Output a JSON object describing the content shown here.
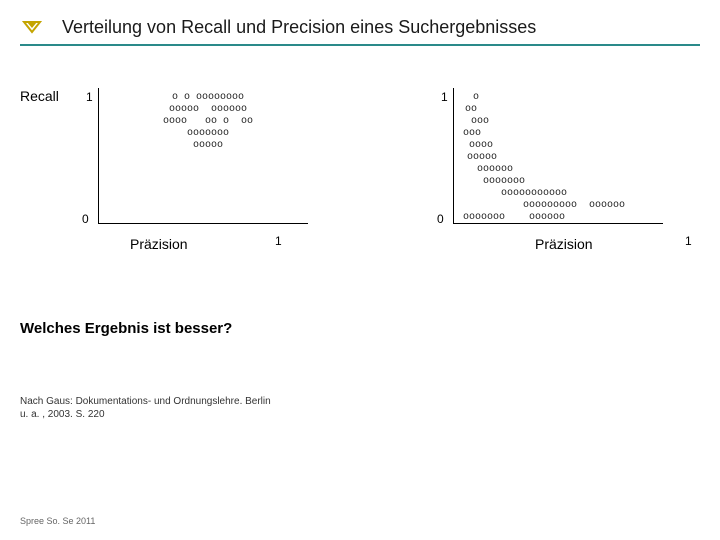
{
  "header": {
    "title": "Verteilung von Recall und Precision eines Suchergebnisses",
    "icon_color": "#c4a400"
  },
  "chart_left": {
    "y_label": "Recall",
    "x_label": "Präzision",
    "y_tick_top": "1",
    "y_tick_bottom": "0",
    "x_tick_right": "1",
    "axis_color": "#000000",
    "background": "#ffffff",
    "point_glyph": "o",
    "point_color": "#222222",
    "point_fontsize": 10,
    "cloud_alignment": "centered-high",
    "rows": [
      "o o oooooooo",
      "ooooo  oooooo",
      "oooo   oo o  oo",
      "ooooooo",
      "ooooo"
    ]
  },
  "chart_right": {
    "y_label": "",
    "x_label": "Präzision",
    "y_tick_top": "1",
    "y_tick_bottom": "0",
    "x_tick_right": "1",
    "axis_color": "#000000",
    "background": "#ffffff",
    "point_glyph": "o",
    "point_color": "#222222",
    "point_fontsize": 10,
    "cloud_alignment": "staggered-diagonal",
    "rows": [
      "o",
      "oo",
      "ooo",
      "ooo",
      "oooo",
      "ooooo",
      "oooooo",
      "ooooooo",
      "ooooooooooo",
      "ooooooooo  oooooo",
      "ooooooo    oooooo"
    ]
  },
  "question": "Welches Ergebnis ist besser?",
  "citation": "Nach Gaus: Dokumentations- und Ordnungslehre. Berlin u. a. , 2003. S. 220",
  "footer": "Spree So. Se 2011"
}
